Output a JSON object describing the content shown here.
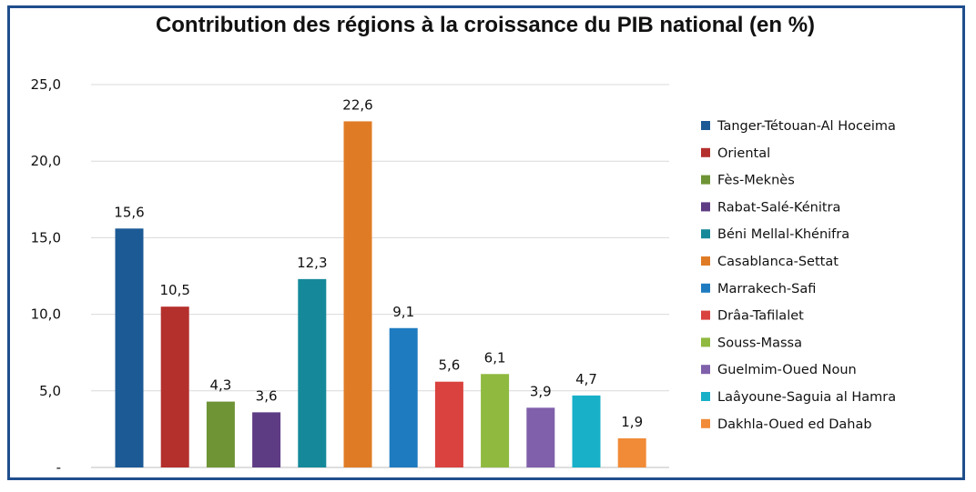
{
  "chart_data": {
    "type": "bar",
    "title": "Contribution des régions à la croissance du PIB national (en %)",
    "xlabel": "",
    "ylabel": "",
    "ylim": [
      0,
      25
    ],
    "yticks": [
      "-",
      "5,0",
      "10,0",
      "15,0",
      "20,0",
      "25,0"
    ],
    "grid": "horizontal",
    "legend_position": "right",
    "categories": [
      "Tanger-Tétouan-Al  Hoceima",
      "Oriental",
      "Fès-Meknès",
      "Rabat-Salé-Kénitra",
      "Béni Mellal-Khénifra",
      "Casablanca-Settat",
      "Marrakech-Safi",
      "Drâa-Tafilalet",
      "Souss-Massa",
      "Guelmim-Oued  Noun",
      "Laâyoune-Saguia al Hamra",
      "Dakhla-Oued ed Dahab"
    ],
    "values": [
      15.6,
      10.5,
      4.3,
      3.6,
      12.3,
      22.6,
      9.1,
      5.6,
      6.1,
      3.9,
      4.7,
      1.9
    ],
    "value_labels": [
      "15,6",
      "10,5",
      "4,3",
      "3,6",
      "12,3",
      "22,6",
      "9,1",
      "5,6",
      "6,1",
      "3,9",
      "4,7",
      "1,9"
    ],
    "colors": [
      "#1c5a96",
      "#b4302d",
      "#6e9436",
      "#5e3c84",
      "#15899a",
      "#e07b25",
      "#1f7bc0",
      "#d9423e",
      "#8fb93f",
      "#8060aa",
      "#17b0c8",
      "#f18b37"
    ]
  }
}
